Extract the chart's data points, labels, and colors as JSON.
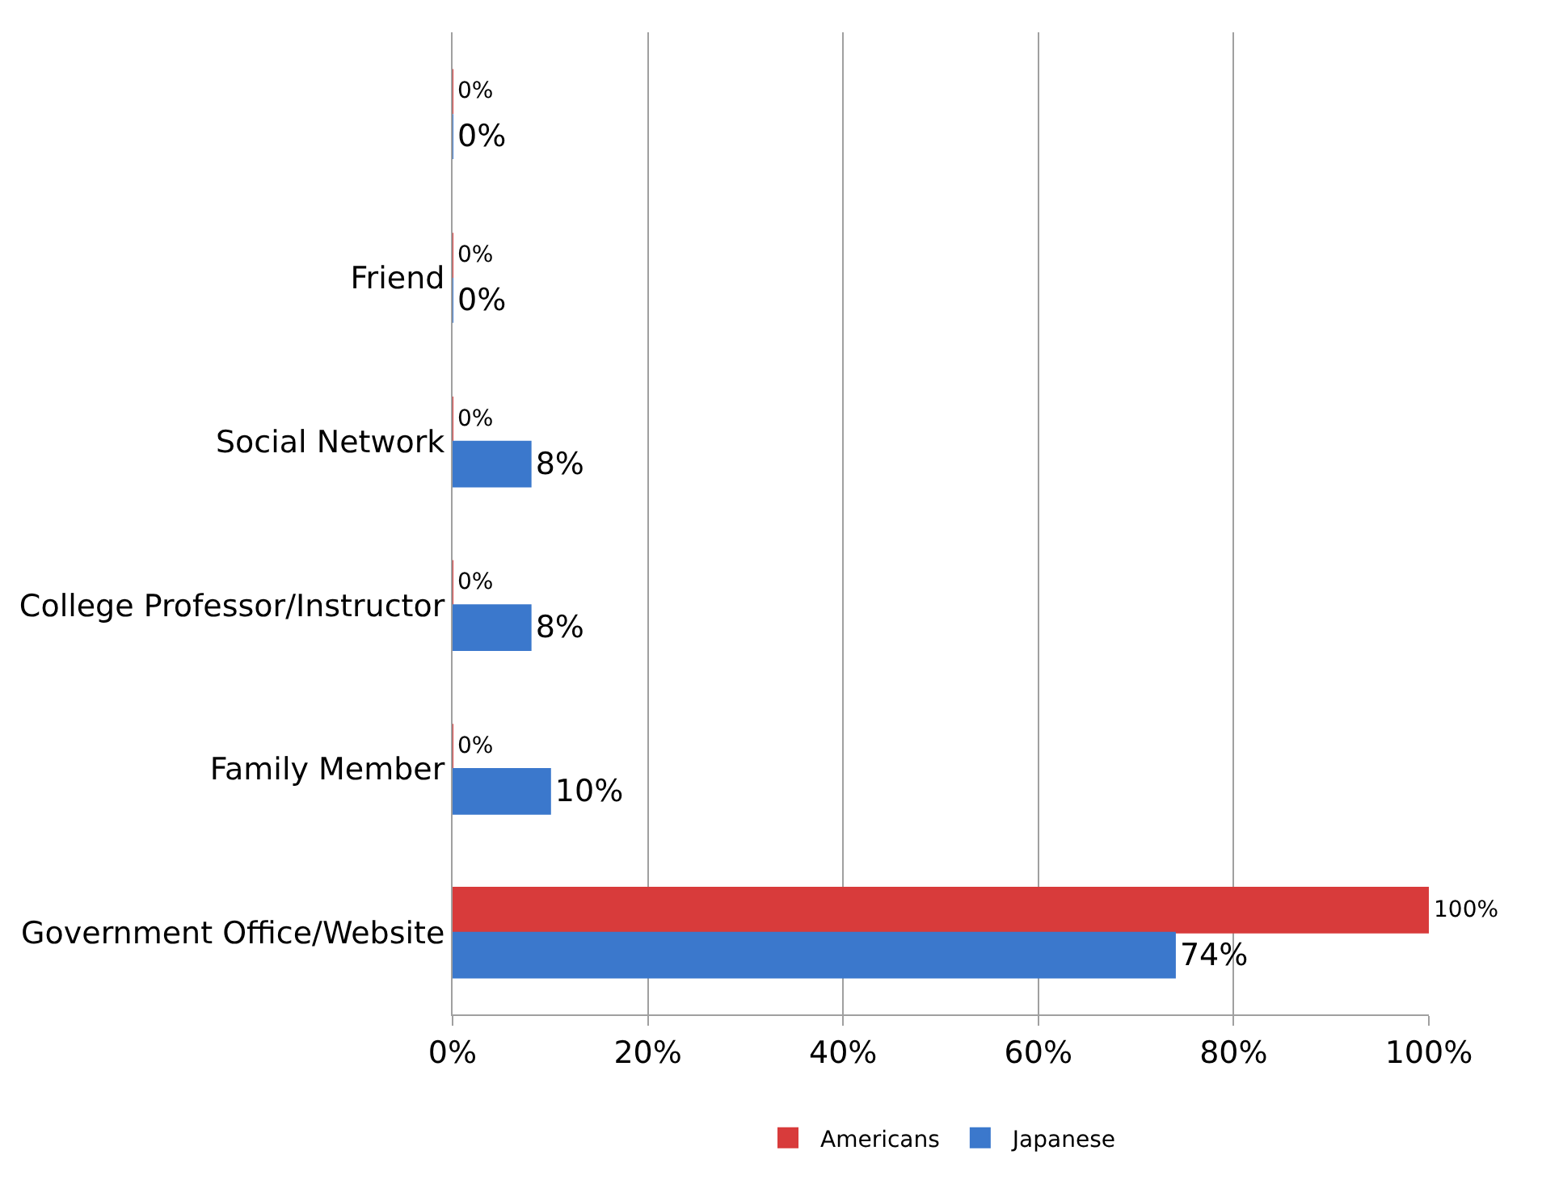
{
  "chart_data": {
    "type": "bar",
    "orientation": "horizontal",
    "categories": [
      null,
      "Friend",
      "Social Network",
      "College Professor/Instructor",
      "Family Member",
      "Government Office/Website"
    ],
    "series": [
      {
        "name": "Americans",
        "color": "#d83b3b",
        "values": [
          0,
          0,
          0,
          0,
          0,
          100
        ],
        "value_labels": [
          "0%",
          "0%",
          "0%",
          "0%",
          "0%",
          "100%"
        ]
      },
      {
        "name": "Japanese",
        "color": "#3b78cc",
        "values": [
          0,
          0,
          8,
          8,
          10,
          74
        ],
        "value_labels": [
          "0%",
          "0%",
          "8%",
          "8%",
          "10%",
          "74%"
        ]
      }
    ],
    "xlim": [
      0,
      100
    ],
    "xticks": [
      {
        "value": 0,
        "label": "0%"
      },
      {
        "value": 20,
        "label": "20%"
      },
      {
        "value": 40,
        "label": "40%"
      },
      {
        "value": 60,
        "label": "60%"
      },
      {
        "value": 80,
        "label": "80%"
      },
      {
        "value": 100,
        "label": "100%"
      }
    ],
    "grid": "x",
    "legend": "bottom"
  }
}
